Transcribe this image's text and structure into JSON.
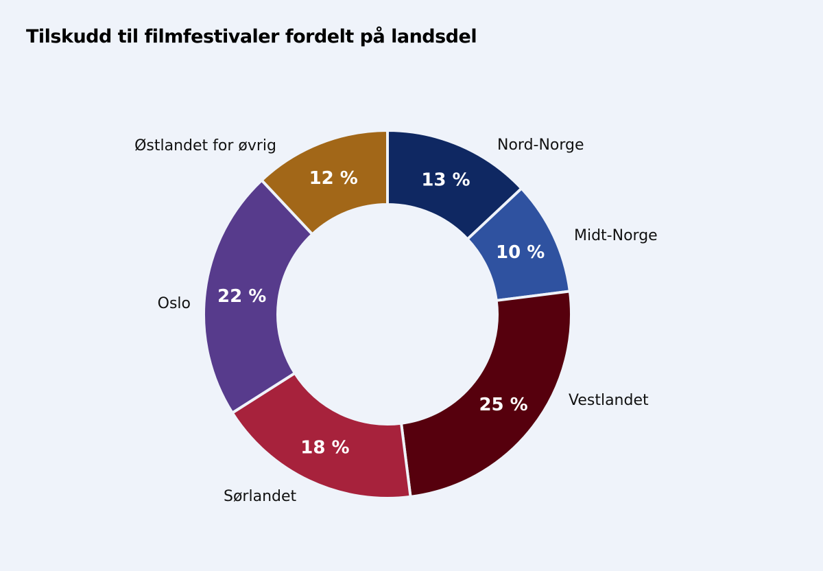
{
  "chart_data": {
    "type": "pie",
    "variant": "donut",
    "title": "Tilskudd til filmfestivaler fordelt på landsdel",
    "start_angle": "12 o'clock, clockwise",
    "unit": "%",
    "slices": [
      {
        "label": "Nord-Norge",
        "value": 13,
        "display": "13 %",
        "color": "#0f2862"
      },
      {
        "label": "Midt-Norge",
        "value": 10,
        "display": "10 %",
        "color": "#2f52a0"
      },
      {
        "label": "Vestlandet",
        "value": 25,
        "display": "25 %",
        "color": "#56000d"
      },
      {
        "label": "Sørlandet",
        "value": 18,
        "display": "18 %",
        "color": "#a7223c"
      },
      {
        "label": "Oslo",
        "value": 22,
        "display": "22 %",
        "color": "#573b8c"
      },
      {
        "label": "Østlandet for øvrig",
        "value": 12,
        "display": "12 %",
        "color": "#a26718"
      }
    ]
  }
}
